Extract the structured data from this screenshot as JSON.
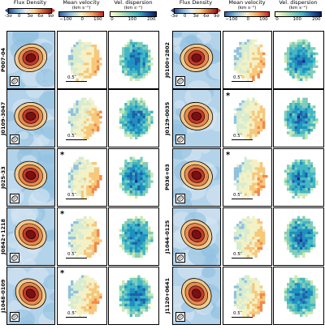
{
  "headers": {
    "flux_title": "Flux Density",
    "mean_title": "Mean velocity",
    "mean_unit": "(km s⁻¹)",
    "disp_title": "Vel. dispersion",
    "disp_unit": "(km s⁻¹)",
    "flux_ticks": [
      "-3σ",
      "0",
      "3σ",
      "6σ",
      "9σ"
    ],
    "mean_ticks": [
      "−100",
      "0",
      "100"
    ],
    "disp_ticks": [
      "0",
      "100",
      "200"
    ]
  },
  "scale_label": "0.5″",
  "star_symbol": "*",
  "colors": {
    "flux_low": "#2a4a8a",
    "flux_high": "#c0392b",
    "mean_low": "#2b5fa8",
    "mean_high": "#c62828",
    "disp_low": "#ffffd9",
    "disp_high": "#081d58"
  },
  "sources": [
    {
      "name": "P007-04",
      "star": false
    },
    {
      "name": "J0100+2802",
      "star": false
    },
    {
      "name": "J0109-3047",
      "star": false
    },
    {
      "name": "J0129-0035",
      "star": true
    },
    {
      "name": "J025-33",
      "star": true
    },
    {
      "name": "P036+03",
      "star": true
    },
    {
      "name": "J0842+1218",
      "star": true
    },
    {
      "name": "J1044-0125",
      "star": false
    },
    {
      "name": "J1048-0109",
      "star": true
    },
    {
      "name": "J1120+0641",
      "star": false
    }
  ]
}
